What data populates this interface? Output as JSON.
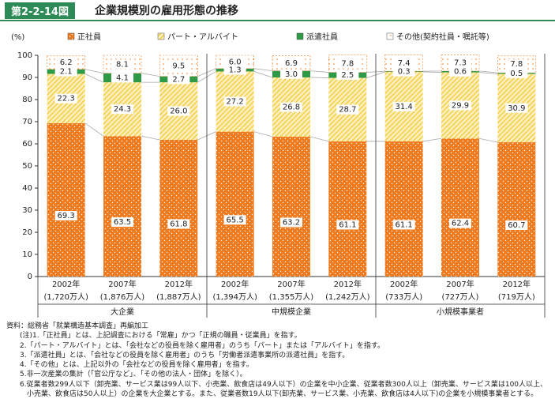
{
  "header": {
    "figure_no": "第2-2-14図",
    "title": "企業規模別の雇用形態の推移"
  },
  "chart_data": {
    "type": "stacked_bar",
    "y_unit": "(%)",
    "categories": [
      "2002年",
      "2007年",
      "2012年",
      "2002年",
      "2007年",
      "2012年",
      "2002年",
      "2007年",
      "2012年"
    ],
    "category_notes": [
      "(1,720万人)",
      "(1,876万人)",
      "(1,887万人)",
      "(1,394万人)",
      "(1,355万人)",
      "(1,242万人)",
      "(733万人)",
      "(727万人)",
      "(719万人)"
    ],
    "groups": [
      "大企業",
      "中規模企業",
      "小規模事業者"
    ],
    "series": [
      {
        "name": "正社員",
        "color": "#f07a1e",
        "values": [
          69.3,
          63.5,
          61.8,
          65.5,
          63.2,
          61.1,
          61.1,
          62.4,
          60.7
        ],
        "value_labels": [
          "69.3",
          "63.5",
          "61.8",
          "65.5",
          "63.2",
          "61.1",
          "61.1",
          "62.4",
          "60.7"
        ]
      },
      {
        "name": "パート・アルバイト",
        "color": "#f6cf4a",
        "values": [
          22.3,
          24.3,
          26.0,
          27.2,
          26.8,
          28.7,
          31.4,
          29.9,
          30.9
        ],
        "value_labels": [
          "22.3",
          "24.3",
          "26.0",
          "27.2",
          "26.8",
          "28.7",
          "31.4",
          "29.9",
          "30.9"
        ]
      },
      {
        "name": "派遣社員",
        "color": "#2e9a47",
        "values": [
          2.1,
          4.1,
          2.7,
          1.3,
          3.0,
          2.5,
          0.3,
          0.6,
          0.5
        ],
        "value_labels": [
          "2.1",
          "4.1",
          "2.7",
          "1.3",
          "3.0",
          "2.5",
          "0.3",
          "0.6",
          "0.5"
        ]
      },
      {
        "name": "その他(契約社員・嘱託等)",
        "color": "#f07a1e",
        "values": [
          6.2,
          8.1,
          9.5,
          6.0,
          6.9,
          7.8,
          7.4,
          7.3,
          7.8
        ],
        "value_labels": [
          "6.2",
          "8.1",
          "9.5",
          "6.0",
          "6.9",
          "7.8",
          "7.4",
          "7.3",
          "7.8"
        ]
      }
    ],
    "ylim": [
      0,
      100
    ],
    "yticks": [
      0,
      10,
      20,
      30,
      40,
      50,
      60,
      70,
      80,
      90,
      100
    ]
  },
  "notes": {
    "source": "資料：総務省「就業構造基本調査」再編加工",
    "items": [
      "(注)1.「正社員」とは、上記調査における「常雇」かつ「正規の職員・従業員」を指す。",
      "2.「パート・アルバイト」とは、「会社などの役員を除く雇用者」のうち「パート」または「アルバイト」を指す。",
      "3.「派遣社員」とは、「会社などの役員を除く雇用者」のうち「労働者派遣事業所の派遣社員」を指す。",
      "4.「その他」とは、上記以外の「会社などの役員を除く雇用者」を指す。",
      "5.非一次産業の集計（「官公庁など」、「その他の法人・団体」を除く）。",
      "6.従業者数299人以下（卸売業、サービス業は99人以下、小売業、飲食店は49人以下）の企業を中小企業、従業者数300人以上（卸売業、サービス業は100人以上、小売業、飲食店は50人以上）の企業を大企業とする。また、従業者数19人以下(卸売業、サービス業、小売業、飲食店は4人以下)の企業を小規模事業者とする。"
    ]
  }
}
